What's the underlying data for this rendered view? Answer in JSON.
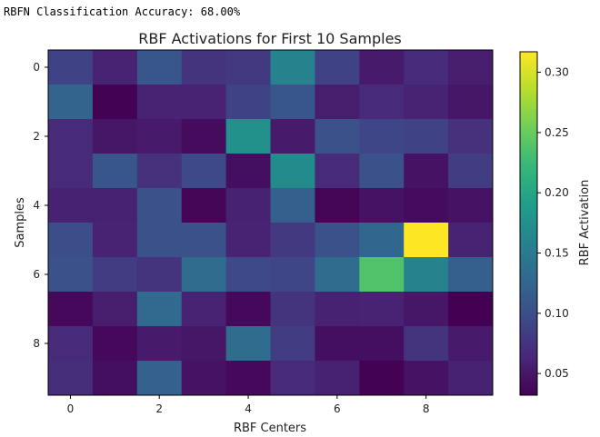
{
  "output_text": "RBFN Classification Accuracy: 68.00%",
  "chart_data": {
    "type": "heatmap",
    "title": "RBF Activations for First 10 Samples",
    "xlabel": "RBF Centers",
    "ylabel": "Samples",
    "colormap": "viridis",
    "colorbar_label": "RBF Activation",
    "color_range": [
      0.032,
      0.317
    ],
    "colorbar_ticks": [
      "0.05",
      "0.10",
      "0.15",
      "0.20",
      "0.25",
      "0.30"
    ],
    "x_ticks": [
      "0",
      "2",
      "4",
      "6",
      "8"
    ],
    "y_ticks": [
      "0",
      "2",
      "4",
      "6",
      "8"
    ],
    "rows": [
      "0",
      "1",
      "2",
      "3",
      "4",
      "5",
      "6",
      "7",
      "8",
      "9"
    ],
    "columns": [
      "0",
      "1",
      "2",
      "3",
      "4",
      "5",
      "6",
      "7",
      "8",
      "9"
    ],
    "values": [
      [
        0.089,
        0.06,
        0.109,
        0.075,
        0.08,
        0.16,
        0.089,
        0.052,
        0.066,
        0.055
      ],
      [
        0.123,
        0.033,
        0.06,
        0.06,
        0.089,
        0.109,
        0.055,
        0.066,
        0.06,
        0.049
      ],
      [
        0.066,
        0.049,
        0.052,
        0.041,
        0.175,
        0.052,
        0.103,
        0.092,
        0.089,
        0.072
      ],
      [
        0.066,
        0.109,
        0.072,
        0.095,
        0.043,
        0.169,
        0.066,
        0.103,
        0.046,
        0.083
      ],
      [
        0.058,
        0.058,
        0.103,
        0.035,
        0.058,
        0.118,
        0.035,
        0.046,
        0.041,
        0.046
      ],
      [
        0.1,
        0.06,
        0.103,
        0.103,
        0.06,
        0.08,
        0.103,
        0.126,
        0.317,
        0.06
      ],
      [
        0.103,
        0.083,
        0.075,
        0.132,
        0.095,
        0.092,
        0.132,
        0.237,
        0.16,
        0.118
      ],
      [
        0.038,
        0.055,
        0.129,
        0.06,
        0.038,
        0.075,
        0.058,
        0.06,
        0.049,
        0.032
      ],
      [
        0.066,
        0.038,
        0.052,
        0.049,
        0.132,
        0.083,
        0.043,
        0.043,
        0.075,
        0.052
      ],
      [
        0.069,
        0.043,
        0.12,
        0.046,
        0.038,
        0.066,
        0.058,
        0.033,
        0.046,
        0.058
      ]
    ]
  }
}
